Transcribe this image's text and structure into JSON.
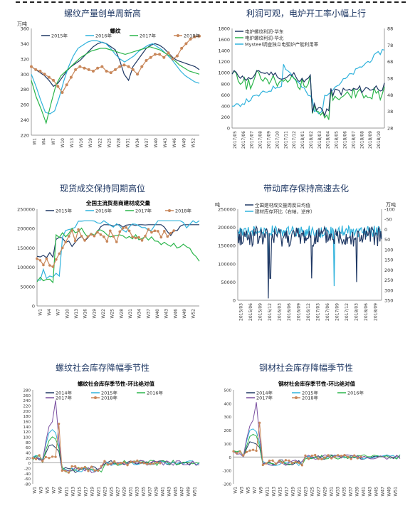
{
  "colors": {
    "navy": "#1f3864",
    "cyan": "#2fb2dc",
    "grey": "#9a9a9a",
    "green": "#2bb54b",
    "orange": "#c8875a"
  },
  "titles": [
    "螺纹产量创单周新高",
    "利润可观，电炉开工率小幅上行",
    "现货成交保持同期高位",
    "带动库存保持高速去化",
    "螺纹社会库存降幅季节性",
    "钢材社会库存降幅季节性"
  ],
  "chart_data": [
    {
      "type": "line",
      "title": "螺纹",
      "ylabel": "万吨",
      "ylim": [
        220,
        360
      ],
      "yticks": [
        220,
        240,
        260,
        280,
        300,
        320,
        340,
        360
      ],
      "xlabels": [
        "W1",
        "W4",
        "W7",
        "W10",
        "W13",
        "W16",
        "W19",
        "W22",
        "W25",
        "W28",
        "W31",
        "W34",
        "W37",
        "W40",
        "W43",
        "W46",
        "W49",
        "W52"
      ],
      "legend": "top",
      "series": [
        {
          "name": "2015年",
          "color": "#1f3864",
          "marker": false,
          "values": [
            310,
            306,
            302,
            298,
            292,
            284,
            288,
            296,
            304,
            310,
            314,
            318,
            324,
            330,
            336,
            340,
            342,
            340,
            336,
            332,
            318,
            300,
            292,
            310,
            318,
            326,
            334,
            338,
            340,
            338,
            334,
            328,
            322,
            318,
            316,
            314,
            312,
            310,
            306
          ]
        },
        {
          "name": "2016年",
          "color": "#2fb2dc",
          "marker": false,
          "values": [
            300,
            284,
            266,
            250,
            248,
            252,
            270,
            292,
            310,
            324,
            334,
            338,
            342,
            344,
            344,
            342,
            340,
            334,
            326,
            320,
            316,
            320,
            324,
            330,
            334,
            338,
            340,
            336,
            332,
            326,
            320,
            312,
            304,
            298,
            294,
            290,
            288
          ]
        },
        {
          "name": "2017年",
          "color": "#2bb54b",
          "marker": false,
          "values": [
            292,
            270,
            254,
            236,
            262,
            286,
            298,
            304,
            310,
            316,
            322,
            326,
            330,
            332,
            334,
            334,
            332,
            330,
            328,
            326,
            328,
            330,
            332,
            334,
            336,
            334,
            332,
            328,
            324,
            318,
            312,
            308,
            304,
            302,
            300
          ]
        },
        {
          "name": "2018年",
          "color": "#c8875a",
          "marker": true,
          "values": [
            310,
            306,
            304,
            300,
            296,
            292,
            284,
            276,
            286,
            296,
            306,
            310,
            308,
            306,
            304,
            308,
            310,
            304,
            302,
            306,
            310,
            312,
            310,
            306,
            300,
            310,
            318,
            322,
            326,
            326,
            322,
            328,
            320,
            324,
            334,
            340,
            346,
            349,
            350
          ]
        }
      ]
    },
    {
      "type": "line",
      "series": [
        {
          "name": "电炉螺纹利润-华东",
          "color": "#1f3864",
          "axis": "left"
        },
        {
          "name": "电炉螺纹利润-华北",
          "color": "#2bb54b",
          "axis": "left"
        },
        {
          "name": "Mysteel调查独立电弧炉产能利用率",
          "color": "#2fb2dc",
          "axis": "right"
        }
      ],
      "ylim": [
        0,
        1800
      ],
      "yticks": [
        0,
        200,
        400,
        600,
        800,
        1000,
        1200,
        1400,
        1600,
        1800
      ],
      "y2lim": [
        28,
        88
      ],
      "y2ticks": [
        28,
        38,
        48,
        58,
        68,
        78,
        88
      ],
      "xlabels": [
        "2017/05",
        "2017/06",
        "2017/07",
        "2017/08",
        "2017/09",
        "2017/10",
        "2017/11",
        "2017/12",
        "2018/01",
        "2018/02",
        "2018/03",
        "2018/04",
        "2018/05",
        "2018/06",
        "2018/07",
        "2018/08",
        "2018/09",
        "2018/10"
      ],
      "legend": "top-left"
    },
    {
      "type": "line",
      "title": "全国主流贸易商建材成交量",
      "ylim": [
        0,
        250000
      ],
      "yticks": [
        0,
        50000,
        100000,
        150000,
        200000,
        250000
      ],
      "xlabels": [
        "W1",
        "W4",
        "W7",
        "W10",
        "W13",
        "W16",
        "W19",
        "W22",
        "W25",
        "W28",
        "W31",
        "W34",
        "W37",
        "W40",
        "W43",
        "W46",
        "W49",
        "W52"
      ],
      "legend": "top",
      "series": [
        {
          "name": "2015年",
          "color": "#1f3864",
          "marker": false
        },
        {
          "name": "2016年",
          "color": "#2fb2dc",
          "marker": false
        },
        {
          "name": "2017年",
          "color": "#2bb54b",
          "marker": false
        },
        {
          "name": "2018年",
          "color": "#c8875a",
          "marker": true
        }
      ]
    },
    {
      "type": "line",
      "ylabel": "吨",
      "y2label": "万吨",
      "ylim": [
        0,
        250000
      ],
      "yticks": [
        0,
        50000,
        100000,
        150000,
        200000,
        250000
      ],
      "y2lim": [
        350,
        -100
      ],
      "y2ticks": [
        -100,
        -50,
        0,
        50,
        100,
        150,
        200,
        250,
        300,
        350
      ],
      "xlabels": [
        "2015/03",
        "2015/06",
        "2015/09",
        "2015/12",
        "2016/03",
        "2016/06",
        "2016/09",
        "2016/12",
        "2017/03",
        "2017/06",
        "2017/09",
        "2017/12",
        "2018/03",
        "2018/06",
        "2018/09"
      ],
      "legend": "top",
      "series": [
        {
          "name": "全国建材成交量周度日均值",
          "color": "#1f3864",
          "axis": "left"
        },
        {
          "name": "建材库存环比（右轴，逆序）",
          "color": "#2fb2dc",
          "axis": "right"
        }
      ]
    },
    {
      "type": "line",
      "title": "螺纹社会库存季节性-环比绝对值",
      "ylim": [
        -80,
        280
      ],
      "yticks": [
        -80,
        -60,
        -40,
        -20,
        0,
        20,
        40,
        60,
        80,
        100,
        120,
        140,
        160,
        180,
        200,
        220,
        240,
        260,
        280
      ],
      "xlabels": [
        "W1",
        "W3",
        "W5",
        "W7",
        "W9",
        "W11",
        "W13",
        "W15",
        "W17",
        "W19",
        "W21",
        "W23",
        "W25",
        "W27",
        "W29",
        "W31",
        "W33",
        "W35",
        "W37",
        "W39",
        "W41",
        "W43",
        "W45",
        "W47",
        "W49",
        "W51"
      ],
      "legend": "top",
      "series": [
        {
          "name": "2014年",
          "color": "#1f3864",
          "marker": false
        },
        {
          "name": "2015年",
          "color": "#2fb2dc",
          "marker": false
        },
        {
          "name": "2016年",
          "color": "#2bb54b",
          "marker": false
        },
        {
          "name": "2017年",
          "color": "#7a4fa0",
          "marker": false
        },
        {
          "name": "2018年",
          "color": "#c8875a",
          "marker": true
        }
      ]
    },
    {
      "type": "line",
      "title": "钢材社会库存季节性-环比绝对值",
      "ylim": [
        -200,
        500
      ],
      "yticks": [
        -200,
        -100,
        0,
        100,
        200,
        300,
        400,
        500
      ],
      "xlabels": [
        "W1",
        "W3",
        "W5",
        "W7",
        "W9",
        "W11",
        "W13",
        "W15",
        "W17",
        "W19",
        "W21",
        "W23",
        "W25",
        "W27",
        "W29",
        "W31",
        "W33",
        "W35",
        "W37",
        "W39",
        "W41",
        "W43",
        "W45",
        "W47",
        "W49",
        "W51"
      ],
      "legend": "top",
      "series": [
        {
          "name": "2014年",
          "color": "#1f3864",
          "marker": false
        },
        {
          "name": "2015年",
          "color": "#2fb2dc",
          "marker": false
        },
        {
          "name": "2016年",
          "color": "#2bb54b",
          "marker": false
        },
        {
          "name": "2017年",
          "color": "#7a4fa0",
          "marker": false
        },
        {
          "name": "2018年",
          "color": "#c8875a",
          "marker": true
        }
      ]
    }
  ]
}
